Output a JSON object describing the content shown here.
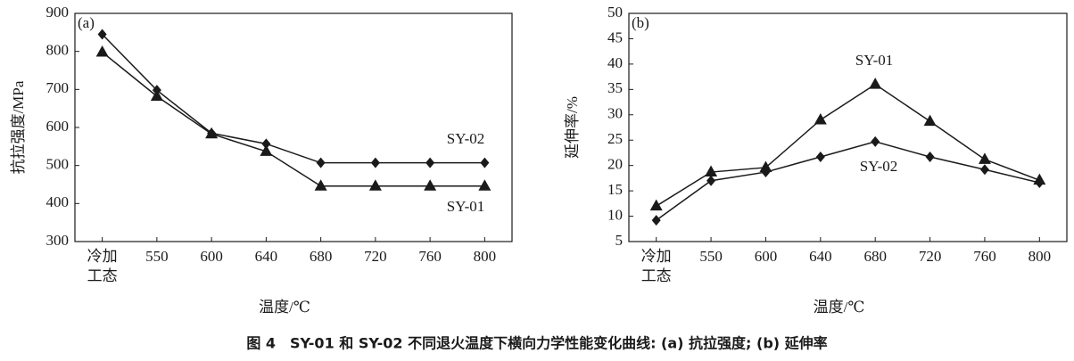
{
  "chart_data": [
    {
      "type": "line",
      "title": "(a)",
      "xlabel": "温度/℃",
      "ylabel": "抗拉强度/MPa",
      "categories": [
        "冷加\n工态",
        "550",
        "600",
        "640",
        "680",
        "720",
        "760",
        "800"
      ],
      "series": [
        {
          "name": "SY-01",
          "color": "#1a1a1a",
          "marker": "triangle",
          "values": [
            798,
            682,
            583,
            537,
            446,
            446,
            446,
            446
          ]
        },
        {
          "name": "SY-02",
          "color": "#1a1a1a",
          "marker": "diamond",
          "values": [
            845,
            698,
            585,
            557,
            507,
            507,
            507,
            507
          ]
        }
      ],
      "ylim": [
        300,
        900
      ],
      "yticks": [
        300,
        400,
        500,
        600,
        700,
        800,
        900
      ]
    },
    {
      "type": "line",
      "title": "(b)",
      "xlabel": "温度/℃",
      "ylabel": "延伸率/%",
      "categories": [
        "冷加\n工态",
        "550",
        "600",
        "640",
        "680",
        "720",
        "760",
        "800"
      ],
      "series": [
        {
          "name": "SY-01",
          "color": "#1a1a1a",
          "marker": "triangle",
          "values": [
            12.0,
            18.7,
            19.6,
            29.0,
            36.0,
            28.7,
            21.2,
            17.1
          ]
        },
        {
          "name": "SY-02",
          "color": "#1a1a1a",
          "marker": "diamond",
          "values": [
            9.2,
            17.0,
            18.7,
            21.7,
            24.7,
            21.7,
            19.2,
            16.6
          ]
        }
      ],
      "ylim": [
        5,
        50
      ],
      "yticks": [
        5,
        10,
        15,
        20,
        25,
        30,
        35,
        40,
        45,
        50
      ]
    }
  ],
  "caption": "图 4　SY-01 和 SY-02 不同退火温度下横向力学性能变化曲线: (a) 抗拉强度; (b) 延伸率"
}
